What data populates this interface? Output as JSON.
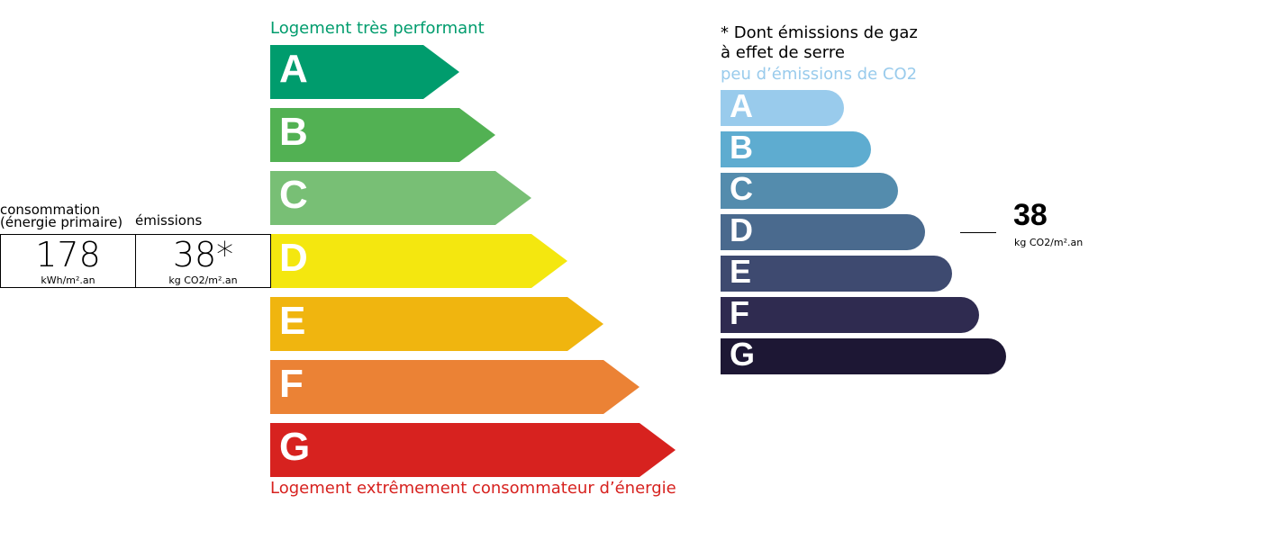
{
  "energy": {
    "top_label": "Logement très performant",
    "bottom_label": "Logement extrêmement consommateur d’énergie",
    "top_color": "#009c6d",
    "bottom_color": "#d7221f",
    "classes": [
      {
        "letter": "A",
        "color": "#009c6d"
      },
      {
        "letter": "B",
        "color": "#52b153"
      },
      {
        "letter": "C",
        "color": "#78bf75"
      },
      {
        "letter": "D",
        "color": "#f4e70f"
      },
      {
        "letter": "E",
        "color": "#f0b50f"
      },
      {
        "letter": "F",
        "color": "#eb8235"
      },
      {
        "letter": "G",
        "color": "#d7221f"
      }
    ]
  },
  "summary": {
    "consumption_label_1": "consommation",
    "consumption_label_2": "(énergie primaire)",
    "emissions_label": "émissions",
    "consumption_value": "178",
    "consumption_unit": "kWh/m².an",
    "emissions_value": "38*",
    "emissions_unit": "kg CO2/m².an"
  },
  "ges": {
    "note_1": "* Dont émissions de gaz",
    "note_2": "à effet de serre",
    "top_label": "peu d’émissions de CO2",
    "top_color": "#99cbec",
    "classes": [
      {
        "letter": "A",
        "color": "#99cbec"
      },
      {
        "letter": "B",
        "color": "#5eacd0"
      },
      {
        "letter": "C",
        "color": "#548cad"
      },
      {
        "letter": "D",
        "color": "#4a6a8e"
      },
      {
        "letter": "E",
        "color": "#3e4a70"
      },
      {
        "letter": "F",
        "color": "#2f2b50"
      },
      {
        "letter": "G",
        "color": "#1d1734"
      }
    ],
    "indicator_value": "38",
    "indicator_unit": "kg CO2/m².an",
    "indicator_class": "D"
  }
}
